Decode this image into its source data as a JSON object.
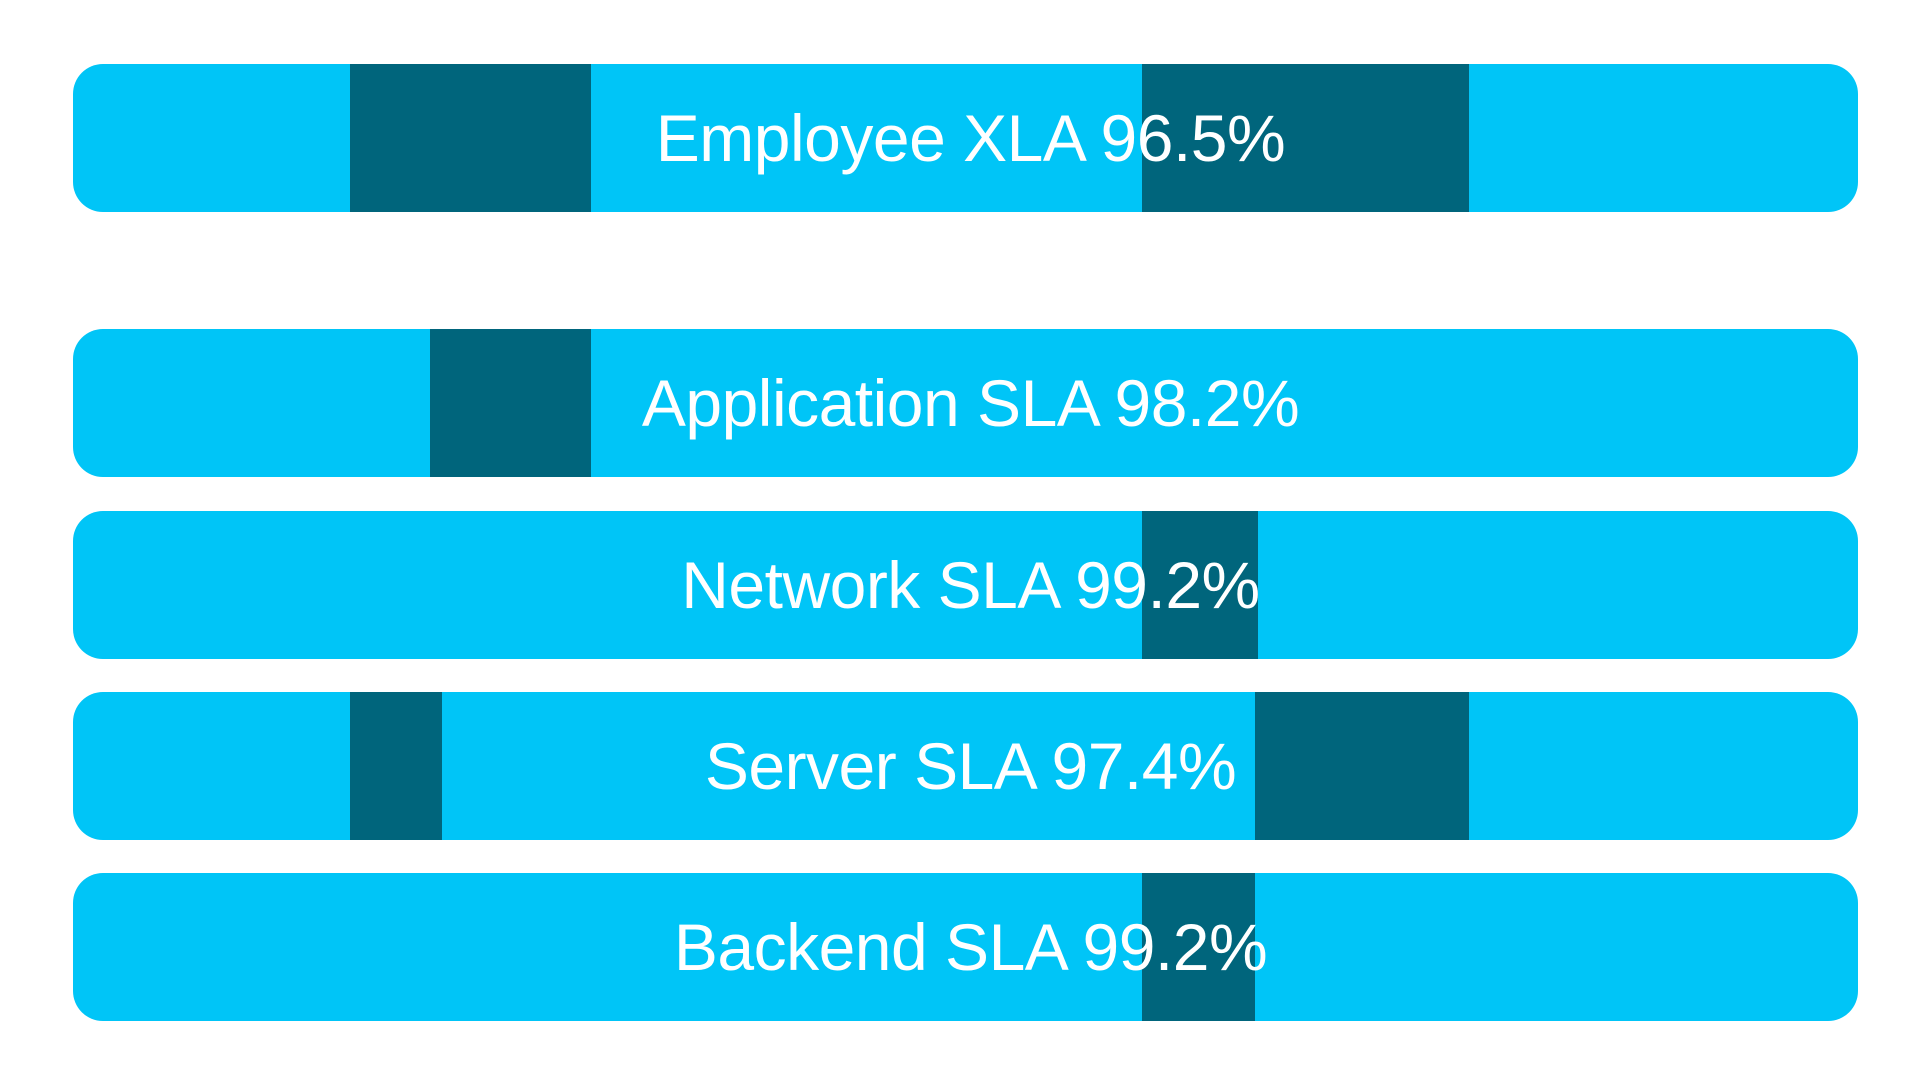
{
  "colors": {
    "bar": "#00c5f7",
    "segment": "#00657c",
    "text": "#ffffff"
  },
  "bars": [
    {
      "label": "Employee XLA 96.5%",
      "segments": [
        {
          "start": 0.155,
          "end": 0.29
        },
        {
          "start": 0.599,
          "end": 0.782
        }
      ]
    },
    {
      "label": "Application SLA 98.2%",
      "segments": [
        {
          "start": 0.2,
          "end": 0.29
        }
      ]
    },
    {
      "label": "Network SLA 99.2%",
      "segments": [
        {
          "start": 0.599,
          "end": 0.664
        }
      ]
    },
    {
      "label": "Server SLA 97.4%",
      "segments": [
        {
          "start": 0.155,
          "end": 0.207
        },
        {
          "start": 0.662,
          "end": 0.782
        }
      ]
    },
    {
      "label": "Backend SLA 99.2%",
      "segments": [
        {
          "start": 0.599,
          "end": 0.662
        }
      ]
    }
  ]
}
